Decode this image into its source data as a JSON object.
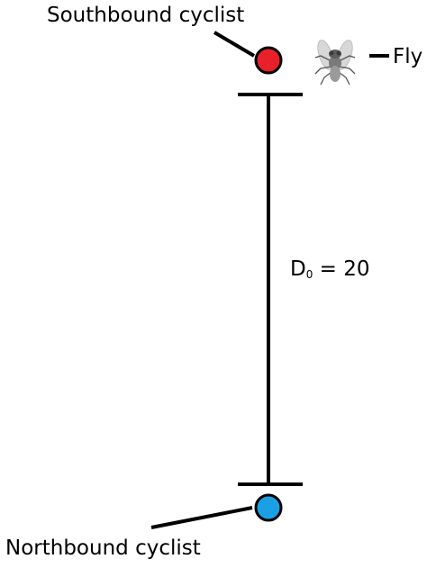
{
  "labels": {
    "southbound": "Southbound cyclist",
    "northbound": "Northbound cyclist",
    "fly": "Fly",
    "distance_symbol": "D",
    "distance_subscript": "0",
    "distance_rest": " = 20"
  },
  "colors": {
    "southbound_dot": "#e8202a",
    "northbound_dot": "#1ba0e6",
    "line": "#000000",
    "fly": "#8a8a8a"
  },
  "icons": {
    "fly": "fly-icon"
  }
}
